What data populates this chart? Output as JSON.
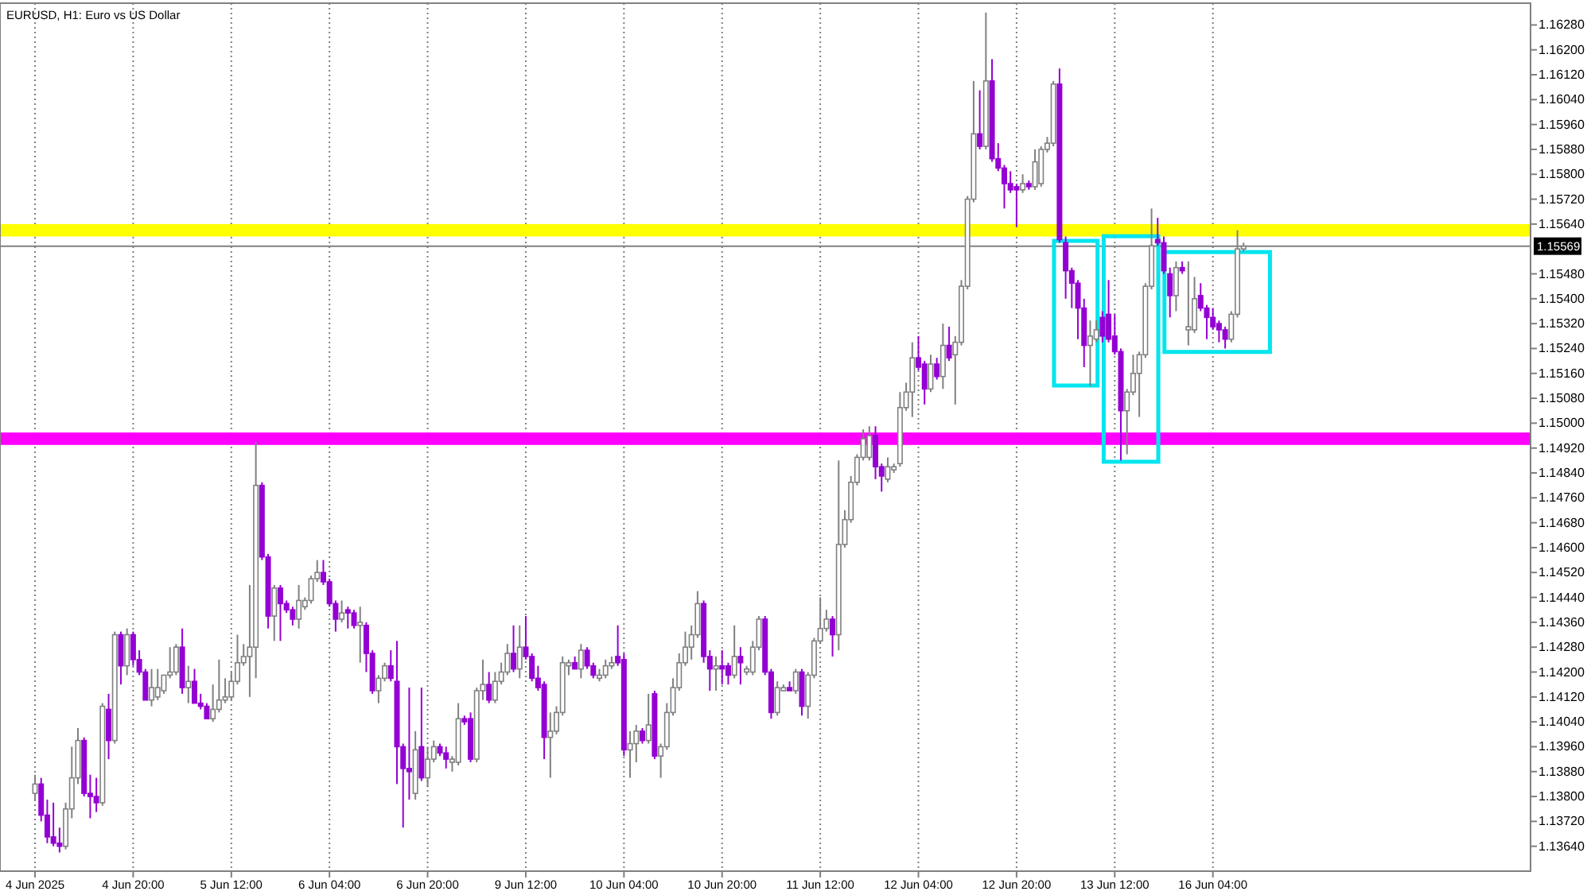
{
  "chart_data": {
    "type": "candlestick",
    "title": "EURUSD, H1:  Euro vs US Dollar",
    "colors": [
      "#808080",
      "#9400d3",
      "#9400d3",
      "#9400d3",
      "#9400d3",
      "#808080",
      "#808080",
      "#808080",
      "#9400d3",
      "#9400d3",
      "#9400d3",
      "#808080",
      "#9400d3",
      "#808080",
      "#9400d3",
      "#808080",
      "#9400d3",
      "#9400d3",
      "#9400d3",
      "#808080",
      "#808080",
      "#808080",
      "#808080",
      "#808080",
      "#9400d3",
      "#808080",
      "#9400d3",
      "#9400d3",
      "#9400d3",
      "#808080",
      "#808080",
      "#808080",
      "#808080",
      "#808080",
      "#808080",
      "#808080",
      "#808080",
      "#9400d3",
      "#9400d3",
      "#808080",
      "#9400d3",
      "#9400d3",
      "#9400d3",
      "#808080",
      "#808080",
      "#808080",
      "#808080",
      "#9400d3",
      "#9400d3",
      "#9400d3",
      "#808080",
      "#9400d3",
      "#9400d3",
      "#808080",
      "#9400d3",
      "#9400d3",
      "#808080",
      "#808080",
      "#9400d3",
      "#9400d3",
      "#9400d3",
      "#9400d3",
      "#808080",
      "#9400d3",
      "#808080",
      "#808080",
      "#9400d3",
      "#9400d3",
      "#808080",
      "#808080",
      "#9400d3",
      "#9400d3",
      "#808080",
      "#808080",
      "#9400d3",
      "#808080",
      "#808080",
      "#808080",
      "#9400d3",
      "#808080",
      "#9400d3",
      "#9400d3",
      "#9400d3",
      "#9400d3",
      "#808080",
      "#808080",
      "#808080",
      "#808080",
      "#9400d3",
      "#808080",
      "#9400d3",
      "#9400d3",
      "#808080",
      "#808080",
      "#808080",
      "#9400d3",
      "#9400d3",
      "#808080",
      "#808080",
      "#9400d3",
      "#808080",
      "#9400d3",
      "#808080",
      "#808080",
      "#808080",
      "#808080",
      "#808080",
      "#808080",
      "#808080",
      "#9400d3",
      "#9400d3",
      "#808080",
      "#9400d3",
      "#9400d3",
      "#808080",
      "#9400d3",
      "#808080",
      "#808080",
      "#808080",
      "#9400d3",
      "#9400d3",
      "#808080",
      "#808080",
      "#9400d3",
      "#808080",
      "#9400d3",
      "#808080",
      "#808080",
      "#808080",
      "#808080",
      "#9400d3",
      "#808080",
      "#808080",
      "#808080",
      "#808080",
      "#808080",
      "#808080",
      "#9400d3",
      "#9400d3",
      "#808080",
      "#808080",
      "#808080",
      "#808080",
      "#808080",
      "#9400d3",
      "#9400d3",
      "#808080",
      "#9400d3",
      "#808080",
      "#9400d3",
      "#808080",
      "#808080",
      "#808080",
      "#808080",
      "#9400d3",
      "#808080",
      "#9400d3",
      "#9400d3",
      "#9400d3",
      "#9400d3",
      "#9400d3",
      "#808080",
      "#9400d3",
      "#808080",
      "#808080",
      "#808080",
      "#808080",
      "#9400d3",
      "#9400d3",
      "#9400d3",
      "#9400d3",
      "#9400d3",
      "#808080",
      "#808080",
      "#9400d3",
      "#9400d3",
      "#9400d3",
      "#9400d3",
      "#808080",
      "#808080",
      "#808080",
      "#808080",
      "#808080",
      "#9400d3",
      "#9400d3",
      "#9400d3",
      "#808080",
      "#9400d3",
      "#808080",
      "#808080",
      "#9400d3",
      "#9400d3",
      "#9400d3",
      "#9400d3",
      "#9400d3",
      "#808080",
      "#808080",
      "#808080",
      null,
      null,
      null,
      null,
      null,
      null,
      null,
      null,
      null,
      null,
      null,
      null,
      null,
      null,
      null,
      null,
      null,
      null,
      null,
      null,
      null,
      null,
      null,
      null,
      null,
      null,
      null,
      null,
      null,
      null,
      null,
      null,
      null,
      null,
      null,
      null,
      null,
      null,
      null,
      null,
      null,
      null,
      null,
      null,
      null,
      null
    ],
    "categories": [
      "4 Jun 2025",
      null,
      null,
      null,
      null,
      null,
      null,
      null,
      null,
      null,
      null,
      null,
      null,
      null,
      null,
      null,
      "4 Jun 20:00",
      null,
      null,
      null,
      null,
      null,
      null,
      null,
      null,
      null,
      null,
      null,
      null,
      null,
      null,
      null,
      "5 Jun 12:00",
      null,
      null,
      null,
      null,
      null,
      null,
      null,
      null,
      null,
      null,
      null,
      null,
      null,
      null,
      null,
      "6 Jun 04:00",
      null,
      null,
      null,
      null,
      null,
      null,
      null,
      null,
      null,
      null,
      null,
      null,
      null,
      null,
      null,
      "6 Jun 20:00",
      null,
      null,
      null,
      null,
      null,
      null,
      null,
      null,
      null,
      null,
      null,
      null,
      null,
      null,
      null,
      "9 Jun 12:00",
      null,
      null,
      null,
      null,
      null,
      null,
      null,
      null,
      null,
      null,
      null,
      null,
      null,
      null,
      null,
      "10 Jun 04:00",
      null,
      null,
      null,
      null,
      null,
      null,
      null,
      null,
      null,
      null,
      null,
      null,
      null,
      null,
      null,
      "10 Jun 20:00",
      null,
      null,
      null,
      null,
      null,
      null,
      null,
      null,
      null,
      null,
      null,
      null,
      null,
      null,
      null,
      "11 Jun 12:00",
      null,
      null,
      null,
      null,
      null,
      null,
      null,
      null,
      null,
      null,
      null,
      null,
      null,
      null,
      null,
      "12 Jun 04:00",
      null,
      null,
      null,
      null,
      null,
      null,
      null,
      null,
      null,
      null,
      null,
      null,
      null,
      null,
      null,
      "12 Jun 20:00",
      null,
      null,
      null,
      null,
      null,
      null,
      null,
      null,
      null,
      null,
      null,
      null,
      null,
      null,
      null,
      "13 Jun 12:00",
      null,
      null,
      null,
      null,
      null,
      null,
      null,
      null,
      null,
      null,
      null,
      null,
      null,
      null,
      null,
      "16 Jun 04:00",
      null,
      null,
      null,
      null,
      null,
      null,
      null,
      null,
      null,
      null,
      null,
      null,
      null,
      null,
      null,
      null,
      null,
      null,
      null,
      null,
      null,
      null,
      null,
      null,
      null,
      null,
      null,
      null,
      null,
      null,
      null,
      null,
      null,
      null,
      null,
      null,
      null,
      null,
      null,
      null,
      null,
      null,
      null,
      null,
      null,
      null,
      null,
      null,
      null,
      null,
      null
    ],
    "ohlc": [
      [
        1.1381,
        1.1387,
        1.1379,
        1.1384
      ],
      [
        1.1384,
        1.1386,
        1.1372,
        1.1374
      ],
      [
        1.1374,
        1.1379,
        1.1365,
        1.1367
      ],
      [
        1.1367,
        1.1378,
        1.1364,
        1.1365
      ],
      [
        1.1365,
        1.137,
        1.1362,
        1.1364
      ],
      [
        1.1364,
        1.1378,
        1.1363,
        1.1376
      ],
      [
        1.1376,
        1.1396,
        1.1373,
        1.1386
      ],
      [
        1.1386,
        1.1402,
        1.1384,
        1.1398
      ],
      [
        1.1398,
        1.1399,
        1.138,
        1.1381
      ],
      [
        1.1381,
        1.1387,
        1.1373,
        1.138
      ],
      [
        1.138,
        1.1386,
        1.1375,
        1.1378
      ],
      [
        1.1378,
        1.141,
        1.1377,
        1.1409
      ],
      [
        1.1408,
        1.1413,
        1.1392,
        1.1398
      ],
      [
        1.1398,
        1.1433,
        1.1397,
        1.1432
      ],
      [
        1.1432,
        1.1433,
        1.1416,
        1.1422
      ],
      [
        1.1422,
        1.1434,
        1.1419,
        1.1432
      ],
      [
        1.1432,
        1.1433,
        1.1422,
        1.1424
      ],
      [
        1.1424,
        1.1427,
        1.1419,
        1.142
      ],
      [
        1.142,
        1.1421,
        1.1411,
        1.1411
      ],
      [
        1.1411,
        1.1421,
        1.1409,
        1.1415
      ],
      [
        1.1412,
        1.1421,
        1.1411,
        1.1415
      ],
      [
        1.1414,
        1.1419,
        1.1413,
        1.1419
      ],
      [
        1.1419,
        1.1428,
        1.1418,
        1.142
      ],
      [
        1.142,
        1.1429,
        1.1419,
        1.1428
      ],
      [
        1.1428,
        1.1434,
        1.1413,
        1.1415
      ],
      [
        1.1415,
        1.1422,
        1.141,
        1.1417
      ],
      [
        1.1417,
        1.1421,
        1.141,
        1.141
      ],
      [
        1.141,
        1.1413,
        1.1408,
        1.1409
      ],
      [
        1.1409,
        1.141,
        1.1405,
        1.1405
      ],
      [
        1.1405,
        1.1416,
        1.1404,
        1.1408
      ],
      [
        1.1408,
        1.1424,
        1.1407,
        1.1411
      ],
      [
        1.1411,
        1.1418,
        1.141,
        1.1412
      ],
      [
        1.1412,
        1.142,
        1.1411,
        1.1417
      ],
      [
        1.1417,
        1.1432,
        1.1416,
        1.1423
      ],
      [
        1.1423,
        1.1429,
        1.1422,
        1.1425
      ],
      [
        1.1425,
        1.1448,
        1.1412,
        1.1428
      ],
      [
        1.1428,
        1.1494,
        1.1418,
        1.148
      ],
      [
        1.148,
        1.1481,
        1.1456,
        1.1457
      ],
      [
        1.1457,
        1.1458,
        1.1434,
        1.1438
      ],
      [
        1.1438,
        1.1448,
        1.143,
        1.1447
      ],
      [
        1.1447,
        1.1448,
        1.143,
        1.1442
      ],
      [
        1.1442,
        1.1443,
        1.1439,
        1.144
      ],
      [
        1.144,
        1.1441,
        1.1435,
        1.1437
      ],
      [
        1.1437,
        1.1448,
        1.1434,
        1.1443
      ],
      [
        1.1441,
        1.1444,
        1.144,
        1.1443
      ],
      [
        1.1443,
        1.1451,
        1.1442,
        1.145
      ],
      [
        1.145,
        1.1456,
        1.1449,
        1.1452
      ],
      [
        1.1452,
        1.1456,
        1.1448,
        1.1449
      ],
      [
        1.1449,
        1.145,
        1.1441,
        1.1442
      ],
      [
        1.1442,
        1.1443,
        1.1433,
        1.1437
      ],
      [
        1.1437,
        1.1443,
        1.1436,
        1.1439
      ],
      [
        1.144,
        1.1441,
        1.1434,
        1.1439
      ],
      [
        1.1439,
        1.144,
        1.1434,
        1.1435
      ],
      [
        1.1435,
        1.1441,
        1.1423,
        1.1436
      ],
      [
        1.1435,
        1.1436,
        1.142,
        1.1426
      ],
      [
        1.1426,
        1.1427,
        1.1413,
        1.1414
      ],
      [
        1.1414,
        1.1419,
        1.141,
        1.1418
      ],
      [
        1.1418,
        1.1423,
        1.1417,
        1.1422
      ],
      [
        1.1422,
        1.1427,
        1.1417,
        1.1418
      ],
      [
        1.1417,
        1.143,
        1.1384,
        1.1396
      ],
      [
        1.1396,
        1.1397,
        1.137,
        1.1389
      ],
      [
        1.1389,
        1.1415,
        1.1379,
        1.1388
      ],
      [
        1.1381,
        1.1401,
        1.1379,
        1.1395
      ],
      [
        1.1396,
        1.1415,
        1.1385,
        1.1386
      ],
      [
        1.1386,
        1.1396,
        1.1383,
        1.1392
      ],
      [
        1.1392,
        1.1398,
        1.1391,
        1.1396
      ],
      [
        1.1396,
        1.1397,
        1.1393,
        1.1394
      ],
      [
        1.1394,
        1.1396,
        1.1389,
        1.1392
      ],
      [
        1.1391,
        1.1393,
        1.1388,
        1.1392
      ],
      [
        1.1391,
        1.141,
        1.139,
        1.1405
      ],
      [
        1.1405,
        1.1406,
        1.1403,
        1.1404
      ],
      [
        1.1405,
        1.1407,
        1.1391,
        1.1392
      ],
      [
        1.1392,
        1.1415,
        1.1391,
        1.1414
      ],
      [
        1.1414,
        1.1424,
        1.1411,
        1.1416
      ],
      [
        1.1416,
        1.142,
        1.141,
        1.1411
      ],
      [
        1.1411,
        1.142,
        1.141,
        1.1417
      ],
      [
        1.1417,
        1.1423,
        1.1416,
        1.142
      ],
      [
        1.142,
        1.1429,
        1.1419,
        1.1426
      ],
      [
        1.1426,
        1.1435,
        1.142,
        1.1421
      ],
      [
        1.1421,
        1.1435,
        1.1418,
        1.1428
      ],
      [
        1.1428,
        1.1438,
        1.1424,
        1.1425
      ],
      [
        1.1425,
        1.1426,
        1.1417,
        1.1418
      ],
      [
        1.1418,
        1.1422,
        1.1414,
        1.1415
      ],
      [
        1.1416,
        1.1417,
        1.1392,
        1.1399
      ],
      [
        1.1399,
        1.1407,
        1.1386,
        1.1401
      ],
      [
        1.1401,
        1.1409,
        1.14,
        1.1407
      ],
      [
        1.1407,
        1.1425,
        1.1406,
        1.1423
      ],
      [
        1.1422,
        1.1424,
        1.1419,
        1.1423
      ],
      [
        1.1423,
        1.1425,
        1.1421,
        1.1421
      ],
      [
        1.1421,
        1.1429,
        1.1418,
        1.1427
      ],
      [
        1.1427,
        1.1428,
        1.1421,
        1.1422
      ],
      [
        1.1422,
        1.1423,
        1.1418,
        1.1419
      ],
      [
        1.1418,
        1.1421,
        1.1417,
        1.1419
      ],
      [
        1.1419,
        1.1424,
        1.1418,
        1.1422
      ],
      [
        1.1422,
        1.1425,
        1.1421,
        1.1423
      ],
      [
        1.1425,
        1.1435,
        1.1422,
        1.1423
      ],
      [
        1.1424,
        1.1426,
        1.1393,
        1.1395
      ],
      [
        1.1395,
        1.1401,
        1.1386,
        1.1397
      ],
      [
        1.1397,
        1.1403,
        1.1391,
        1.1401
      ],
      [
        1.1401,
        1.1402,
        1.1397,
        1.1398
      ],
      [
        1.1398,
        1.1413,
        1.1397,
        1.1403
      ],
      [
        1.1413,
        1.1414,
        1.1392,
        1.1393
      ],
      [
        1.1393,
        1.1397,
        1.1386,
        1.1396
      ],
      [
        1.1396,
        1.141,
        1.1395,
        1.1407
      ],
      [
        1.1407,
        1.1418,
        1.1406,
        1.1415
      ],
      [
        1.1415,
        1.1426,
        1.1414,
        1.1423
      ],
      [
        1.1423,
        1.1433,
        1.1422,
        1.1428
      ],
      [
        1.1428,
        1.1435,
        1.1424,
        1.1432
      ],
      [
        1.1432,
        1.1446,
        1.1431,
        1.1442
      ],
      [
        1.1442,
        1.1443,
        1.1423,
        1.1425
      ],
      [
        1.1425,
        1.1427,
        1.1414,
        1.1421
      ],
      [
        1.1421,
        1.1425,
        1.1414,
        1.1422
      ],
      [
        1.1422,
        1.1427,
        1.1416,
        1.1421
      ],
      [
        1.1422,
        1.1423,
        1.1416,
        1.1419
      ],
      [
        1.1419,
        1.1435,
        1.1418,
        1.1425
      ],
      [
        1.1425,
        1.1428,
        1.1416,
        1.1423
      ],
      [
        1.142,
        1.1422,
        1.1419,
        1.1421
      ],
      [
        1.142,
        1.143,
        1.1419,
        1.1428
      ],
      [
        1.1428,
        1.1438,
        1.1427,
        1.1437
      ],
      [
        1.1437,
        1.1438,
        1.1419,
        1.142
      ],
      [
        1.142,
        1.1421,
        1.1405,
        1.1407
      ],
      [
        1.1407,
        1.1417,
        1.1406,
        1.1415
      ],
      [
        1.1414,
        1.1416,
        1.1414,
        1.1415
      ],
      [
        1.1415,
        1.1417,
        1.1414,
        1.1414
      ],
      [
        1.1414,
        1.1421,
        1.1413,
        1.142
      ],
      [
        1.142,
        1.1421,
        1.1406,
        1.1409
      ],
      [
        1.1409,
        1.142,
        1.1405,
        1.1419
      ],
      [
        1.1419,
        1.1431,
        1.1418,
        1.143
      ],
      [
        1.143,
        1.1444,
        1.1429,
        1.1434
      ],
      [
        1.1434,
        1.144,
        1.1433,
        1.1437
      ],
      [
        1.1437,
        1.1438,
        1.1425,
        1.1432
      ],
      [
        1.1432,
        1.1488,
        1.1427,
        1.1461
      ],
      [
        1.1461,
        1.1472,
        1.146,
        1.1469
      ],
      [
        1.1469,
        1.1483,
        1.1468,
        1.1481
      ],
      [
        1.1481,
        1.149,
        1.148,
        1.1489
      ],
      [
        1.1489,
        1.1498,
        1.1488,
        1.1495
      ],
      [
        1.1489,
        1.1499,
        1.1488,
        1.1496
      ],
      [
        1.1496,
        1.1499,
        1.1482,
        1.1486
      ],
      [
        1.1486,
        1.1487,
        1.1478,
        1.1483
      ],
      [
        1.1482,
        1.1489,
        1.1481,
        1.1486
      ],
      [
        1.1485,
        1.1487,
        1.1484,
        1.1486
      ],
      [
        1.1487,
        1.151,
        1.1486,
        1.1505
      ],
      [
        1.1505,
        1.1513,
        1.1504,
        1.151
      ],
      [
        1.151,
        1.1526,
        1.1502,
        1.1521
      ],
      [
        1.1521,
        1.1528,
        1.1517,
        1.1518
      ],
      [
        1.1519,
        1.152,
        1.1506,
        1.1511
      ],
      [
        1.1511,
        1.1522,
        1.151,
        1.1519
      ],
      [
        1.1519,
        1.1521,
        1.1514,
        1.1515
      ],
      [
        1.1515,
        1.1532,
        1.1511,
        1.1525
      ],
      [
        1.1525,
        1.1531,
        1.152,
        1.1521
      ],
      [
        1.1522,
        1.1528,
        1.1506,
        1.1526
      ],
      [
        1.1526,
        1.1546,
        1.1525,
        1.1544
      ],
      [
        1.1544,
        1.1573,
        1.1543,
        1.1572
      ],
      [
        1.1572,
        1.161,
        1.1571,
        1.1593
      ],
      [
        1.1593,
        1.1607,
        1.1588,
        1.1589
      ],
      [
        1.1589,
        1.1632,
        1.1588,
        1.161
      ],
      [
        1.161,
        1.1617,
        1.1584,
        1.1585
      ],
      [
        1.1585,
        1.159,
        1.1581,
        1.1582
      ],
      [
        1.1582,
        1.1583,
        1.1569,
        1.1577
      ],
      [
        1.1577,
        1.1581,
        1.1574,
        1.1575
      ],
      [
        1.1576,
        1.1577,
        1.1563,
        1.1575
      ],
      [
        1.1575,
        1.158,
        1.1574,
        1.1577
      ],
      [
        1.1577,
        1.1578,
        1.1575,
        1.1576
      ],
      [
        1.1576,
        1.1588,
        1.1575,
        1.1584
      ],
      [
        1.1577,
        1.1589,
        1.1576,
        1.1588
      ],
      [
        1.1588,
        1.1592,
        1.1587,
        1.159
      ],
      [
        1.159,
        1.161,
        1.1589,
        1.1609
      ],
      [
        1.1609,
        1.1614,
        1.1558,
        1.1559
      ],
      [
        1.1558,
        1.156,
        1.154,
        1.1549
      ],
      [
        1.1549,
        1.155,
        1.1537,
        1.1545
      ],
      [
        1.1545,
        1.1546,
        1.1527,
        1.1537
      ],
      [
        1.1537,
        1.154,
        1.1518,
        1.1525
      ],
      [
        1.1525,
        1.1533,
        1.1512,
        1.1528
      ],
      [
        1.1527,
        1.1533,
        1.1526,
        1.153
      ],
      [
        1.1534,
        1.1536,
        1.1526,
        1.1528
      ],
      [
        1.1535,
        1.1546,
        1.1526,
        1.1527
      ],
      [
        1.1528,
        1.1535,
        1.1522,
        1.1523
      ],
      [
        1.1523,
        1.1524,
        1.1488,
        1.1504
      ],
      [
        1.1504,
        1.1511,
        1.149,
        1.151
      ],
      [
        1.151,
        1.1522,
        1.1509,
        1.1516
      ],
      [
        1.1516,
        1.1523,
        1.1502,
        1.1522
      ],
      [
        1.1522,
        1.1545,
        1.1521,
        1.1544
      ],
      [
        1.1544,
        1.1569,
        1.1543,
        1.1557
      ],
      [
        1.1559,
        1.1566,
        1.1557,
        1.1558
      ],
      [
        1.1558,
        1.156,
        1.1548,
        1.1549
      ],
      [
        1.1548,
        1.155,
        1.1534,
        1.1541
      ],
      [
        1.1541,
        1.1552,
        1.1536,
        1.155
      ],
      [
        1.155,
        1.1552,
        1.1548,
        1.1549
      ],
      [
        1.153,
        1.1552,
        1.1525,
        1.1531
      ],
      [
        1.153,
        1.1547,
        1.1529,
        1.154
      ],
      [
        1.1541,
        1.1545,
        1.1536,
        1.1537
      ],
      [
        1.1537,
        1.1538,
        1.1527,
        1.1534
      ],
      [
        1.1534,
        1.1537,
        1.153,
        1.1531
      ],
      [
        1.1532,
        1.1533,
        1.1526,
        1.153
      ],
      [
        1.153,
        1.1531,
        1.1524,
        1.1527
      ],
      [
        1.1527,
        1.1536,
        1.1526,
        1.1535
      ],
      [
        1.1535,
        1.1562,
        1.1534,
        1.1556
      ],
      [
        1.1556,
        1.1558,
        1.1555,
        1.15569
      ],
      null,
      null,
      null,
      null,
      null,
      null,
      null,
      null,
      null,
      null,
      null,
      null,
      null,
      null,
      null,
      null,
      null,
      null,
      null,
      null,
      null,
      null,
      null,
      null,
      null,
      null,
      null,
      null,
      null,
      null,
      null,
      null,
      null,
      null,
      null,
      null,
      null,
      null,
      null,
      null,
      null,
      null,
      null,
      null,
      null,
      null
    ],
    "ylim": [
      1.1356,
      1.1635
    ],
    "yticks": [
      {
        "value": 1.1364,
        "label": "1.13640"
      },
      {
        "value": 1.1372,
        "label": "1.13720"
      },
      {
        "value": 1.138,
        "label": "1.13800"
      },
      {
        "value": 1.1388,
        "label": "1.13880"
      },
      {
        "value": 1.1396,
        "label": "1.13960"
      },
      {
        "value": 1.1404,
        "label": "1.14040"
      },
      {
        "value": 1.1412,
        "label": "1.14120"
      },
      {
        "value": 1.142,
        "label": "1.14200"
      },
      {
        "value": 1.1428,
        "label": "1.14280"
      },
      {
        "value": 1.1436,
        "label": "1.14360"
      },
      {
        "value": 1.1444,
        "label": "1.14440"
      },
      {
        "value": 1.1452,
        "label": "1.14520"
      },
      {
        "value": 1.146,
        "label": "1.14600"
      },
      {
        "value": 1.1468,
        "label": "1.14680"
      },
      {
        "value": 1.1476,
        "label": "1.14760"
      },
      {
        "value": 1.1484,
        "label": "1.14840"
      },
      {
        "value": 1.1492,
        "label": "1.14920"
      },
      {
        "value": 1.15,
        "label": "1.15000"
      },
      {
        "value": 1.1508,
        "label": "1.15080"
      },
      {
        "value": 1.1516,
        "label": "1.15160"
      },
      {
        "value": 1.1524,
        "label": "1.15240"
      },
      {
        "value": 1.1532,
        "label": "1.15320"
      },
      {
        "value": 1.154,
        "label": "1.15400"
      },
      {
        "value": 1.1548,
        "label": "1.15480"
      },
      {
        "value": 1.1564,
        "label": "1.15640"
      },
      {
        "value": 1.1572,
        "label": "1.15720"
      },
      {
        "value": 1.158,
        "label": "1.15800"
      },
      {
        "value": 1.1588,
        "label": "1.15880"
      },
      {
        "value": 1.1596,
        "label": "1.15960"
      },
      {
        "value": 1.1604,
        "label": "1.16040"
      },
      {
        "value": 1.1612,
        "label": "1.16120"
      },
      {
        "value": 1.162,
        "label": "1.16200"
      },
      {
        "value": 1.1628,
        "label": "1.16280"
      }
    ],
    "ref_lines": [
      {
        "axis": "y",
        "value": 1.15569,
        "label": "1.15569",
        "color": "#808080",
        "line_style": "solid"
      }
    ],
    "bands": [
      {
        "axis": "y",
        "from": 1.156,
        "to": 1.1564,
        "label": null,
        "color": "#ffff00"
      },
      {
        "axis": "y",
        "from": 1.1493,
        "to": 1.1497,
        "label": null,
        "color": "#ff00ff"
      }
    ],
    "grid": "x"
  }
}
